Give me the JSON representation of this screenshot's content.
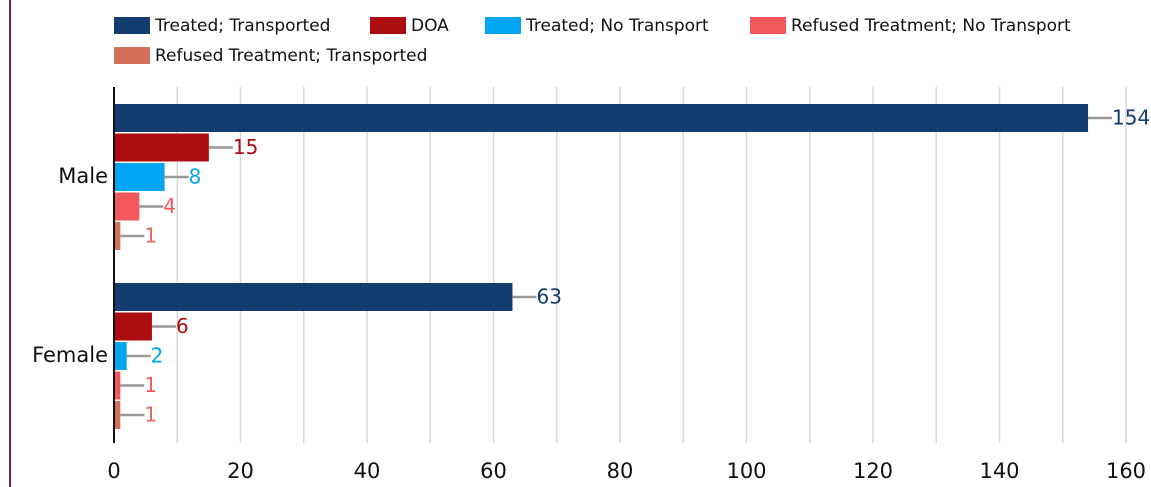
{
  "chart_data": {
    "type": "bar",
    "orientation": "horizontal",
    "categories": [
      "Male",
      "Female"
    ],
    "series": [
      {
        "name": "Treated; Transported",
        "color": "#133d6e",
        "values": [
          154,
          63
        ]
      },
      {
        "name": "DOA",
        "color": "#ab0d10",
        "values": [
          15,
          6
        ]
      },
      {
        "name": "Treated; No Transport",
        "color": "#00a6f2",
        "values": [
          8,
          2
        ]
      },
      {
        "name": "Refused Treatment; No Transport",
        "color": "#f0585c",
        "values": [
          4,
          1
        ]
      },
      {
        "name": "Refused Treatment; Transported",
        "color": "#d46f5a",
        "values": [
          1,
          1
        ]
      }
    ],
    "xlim": [
      0,
      160
    ],
    "xticks": [
      0,
      20,
      40,
      60,
      80,
      100,
      120,
      140,
      160
    ],
    "grid": true,
    "legend": "top"
  }
}
